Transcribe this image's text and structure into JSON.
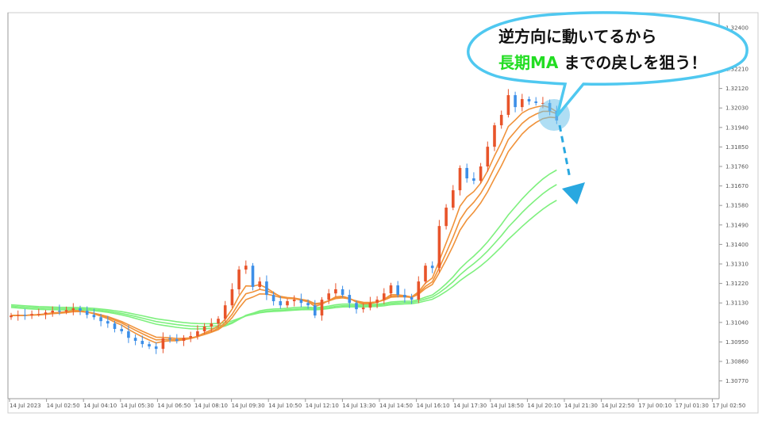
{
  "chart_data": {
    "type": "candlestick",
    "title": "",
    "ylim": [
      1.307,
      1.3245
    ],
    "y_ticks": [
      "1.32400",
      "1.32300",
      "1.32210",
      "1.32120",
      "1.32030",
      "1.31940",
      "1.31850",
      "1.31760",
      "1.31670",
      "1.31580",
      "1.31490",
      "1.31400",
      "1.31310",
      "1.31220",
      "1.31130",
      "1.31040",
      "1.30950",
      "1.30860",
      "1.30770"
    ],
    "x_ticks": [
      "14 Jul 2023",
      "14 Jul 02:50",
      "14 Jul 04:10",
      "14 Jul 05:30",
      "14 Jul 06:50",
      "14 Jul 08:10",
      "14 Jul 09:30",
      "14 Jul 10:50",
      "14 Jul 12:10",
      "14 Jul 13:30",
      "14 Jul 14:50",
      "14 Jul 16:10",
      "14 Jul 17:30",
      "14 Jul 18:50",
      "14 Jul 20:10",
      "14 Jul 21:30",
      "14 Jul 22:50",
      "17 Jul 00:10",
      "17 Jul 01:30",
      "17 Jul 02:50"
    ],
    "closes": [
      1.31072,
      1.31075,
      1.31072,
      1.31079,
      1.31079,
      1.31086,
      1.31094,
      1.3109,
      1.31097,
      1.31105,
      1.31094,
      1.31075,
      1.31064,
      1.31046,
      1.31035,
      1.3101,
      1.30999,
      1.30969,
      1.30955,
      1.3094,
      1.30929,
      1.30918,
      1.30966,
      1.30962,
      1.30955,
      1.30969,
      1.30977,
      1.30999,
      1.31021,
      1.31035,
      1.31057,
      1.31119,
      1.31193,
      1.31284,
      1.31302,
      1.31204,
      1.31229,
      1.31167,
      1.31138,
      1.31119,
      1.31138,
      1.31145,
      1.3113,
      1.31119,
      1.31072,
      1.31145,
      1.31174,
      1.31193,
      1.31167,
      1.3113,
      1.31101,
      1.31108,
      1.3113,
      1.31145,
      1.31174,
      1.31211,
      1.31167,
      1.31156,
      1.31145,
      1.31229,
      1.31302,
      1.31291,
      1.31485,
      1.3157,
      1.3165,
      1.31753,
      1.31705,
      1.31694,
      1.3176,
      1.31851,
      1.3195,
      1.31998,
      1.32089,
      1.32034,
      1.32071,
      1.3206,
      1.32053,
      1.32053,
      1.32016,
      1.31972
    ],
    "series": [
      {
        "kind": "short-ma",
        "color": "#f0923a"
      },
      {
        "kind": "long-ma",
        "color": "#7ef07e"
      }
    ],
    "colors": {
      "bull": "#e8542a",
      "bear": "#3d8fe8",
      "arrow": "#29a8e0",
      "bubble_border": "#4fc8f0"
    }
  },
  "annotation": {
    "line1": "逆方向に動いてるから",
    "line2_highlight": "長期MA",
    "line2_rest": " までの戻しを狙う！"
  }
}
